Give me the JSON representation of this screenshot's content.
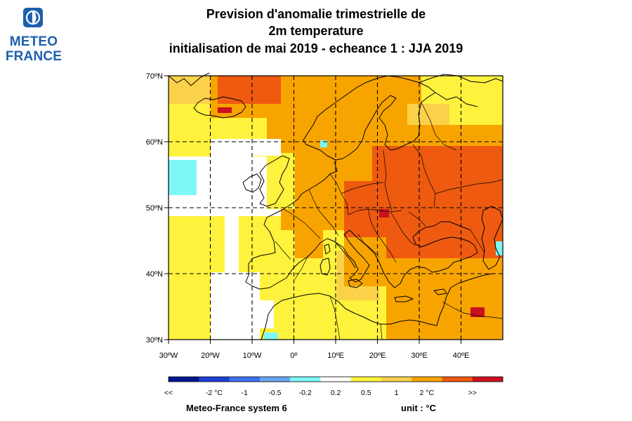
{
  "logo": {
    "line1": "METEO",
    "line2": "FRANCE",
    "icon": "meteo-france-logo-icon"
  },
  "title": {
    "line1": "Prevision d'anomalie trimestrielle de",
    "line2": "2m temperature",
    "line3": "initialisation de mai 2019  -  echeance 1 : JJA 2019"
  },
  "map": {
    "lat_labels": [
      "70ºN",
      "60ºN",
      "50ºN",
      "40ºN",
      "30ºN"
    ],
    "lon_labels": [
      "30ºW",
      "20ºW",
      "10ºW",
      "0º",
      "10ºE",
      "20ºE",
      "30ºE",
      "40ºE"
    ],
    "lat_range": [
      30,
      70
    ],
    "lon_range": [
      -30,
      50
    ],
    "grid": "dashed",
    "colors": {
      "white": "#ffffff",
      "cyan": "#7ff7f7",
      "yellow": "#fff23c",
      "yellow_orange": "#fcd14a",
      "orange": "#f8a400",
      "red_orange": "#ee5a10",
      "dark_red": "#cc1020"
    }
  },
  "colorbar": {
    "colors": [
      "#001690",
      "#1a3fd6",
      "#3f70f0",
      "#6aa6f5",
      "#7ff7f7",
      "#ffffff",
      "#fff23c",
      "#fcd14a",
      "#f8a400",
      "#ee5a10",
      "#cc1020"
    ],
    "labels": [
      "<<",
      "-2 °C",
      "-1",
      "-0.5",
      "-0.2",
      "0.2",
      "0.5",
      "1",
      "2 °C",
      ">>"
    ]
  },
  "footer": {
    "system": "Meteo-France system 6",
    "unit": "unit :  °C"
  }
}
